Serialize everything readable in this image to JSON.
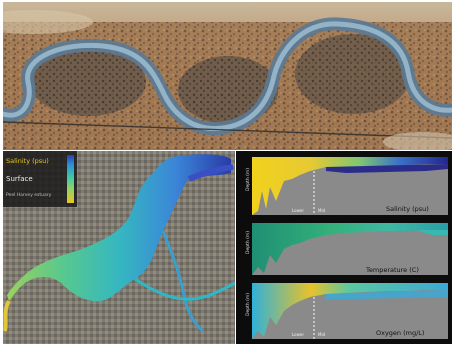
{
  "map_panel": {
    "legend_title": "Salinity (psu)",
    "layer_label": "Surface",
    "caption": "Peel Harvey estuary",
    "colorbar_colors": [
      "#e9c81e",
      "#8ed36b",
      "#3bc7a6",
      "#2b8fd8",
      "#2b3fb0"
    ]
  },
  "profile_panels": [
    {
      "y_label": "Depth (m)",
      "title": "Salinity (psu)",
      "marker_left": "Lower",
      "marker_right": "Mid"
    },
    {
      "y_label": "Depth (m)",
      "title": "Temperature (C)"
    },
    {
      "y_label": "Depth (m)",
      "title": "Oxygen (mg/L)",
      "marker_left": "Lower",
      "marker_right": "Mid"
    }
  ]
}
